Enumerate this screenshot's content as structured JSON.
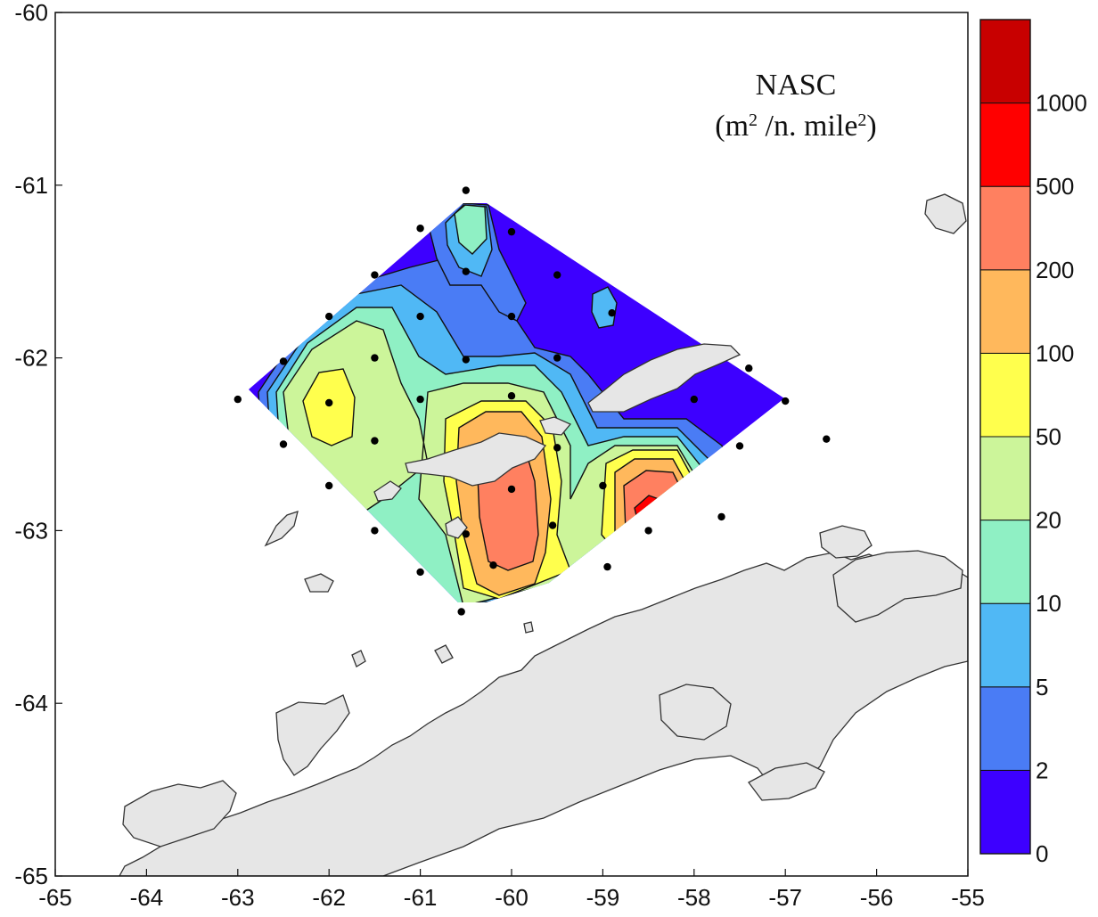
{
  "legend": {
    "title_line1": "NASC",
    "title_line2_prefix": "(m",
    "title_line2_sup1": "2",
    "title_line2_mid": " /n. mile",
    "title_line2_sup2": "2",
    "title_line2_suffix": ")"
  },
  "colorbar": {
    "levels": [
      {
        "label": "0",
        "color": "#3d00ff"
      },
      {
        "label": "2",
        "color": "#4a7cf5"
      },
      {
        "label": "5",
        "color": "#50b8f5"
      },
      {
        "label": "10",
        "color": "#8ff0c4"
      },
      {
        "label": "20",
        "color": "#ccf59a"
      },
      {
        "label": "50",
        "color": "#ffff4d"
      },
      {
        "label": "100",
        "color": "#ffb85c"
      },
      {
        "label": "200",
        "color": "#ff8060"
      },
      {
        "label": "500",
        "color": "#ff0000"
      },
      {
        "label": "1000",
        "color": "#c80000"
      }
    ]
  },
  "axes": {
    "x_ticks": [
      "-65",
      "-64",
      "-63",
      "-62",
      "-61",
      "-60",
      "-59",
      "-58",
      "-57",
      "-56",
      "-55"
    ],
    "y_ticks": [
      "-60",
      "-61",
      "-62",
      "-63",
      "-64",
      "-65"
    ],
    "xlim": [
      -65,
      -55
    ],
    "ylim": [
      -65,
      -60
    ]
  },
  "stations": [
    [
      -60.5,
      -61.03
    ],
    [
      -61.0,
      -61.25
    ],
    [
      -60.0,
      -61.27
    ],
    [
      -61.5,
      -61.52
    ],
    [
      -60.5,
      -61.5
    ],
    [
      -59.5,
      -61.52
    ],
    [
      -62.0,
      -61.76
    ],
    [
      -61.0,
      -61.76
    ],
    [
      -60.0,
      -61.76
    ],
    [
      -58.9,
      -61.74
    ],
    [
      -62.5,
      -62.02
    ],
    [
      -61.5,
      -62.0
    ],
    [
      -60.5,
      -62.01
    ],
    [
      -59.5,
      -62.0
    ],
    [
      -57.4,
      -62.06
    ],
    [
      -63.0,
      -62.24
    ],
    [
      -62.0,
      -62.26
    ],
    [
      -61.0,
      -62.24
    ],
    [
      -60.0,
      -62.22
    ],
    [
      -58.0,
      -62.24
    ],
    [
      -57.0,
      -62.25
    ],
    [
      -62.5,
      -62.5
    ],
    [
      -61.5,
      -62.48
    ],
    [
      -59.5,
      -62.52
    ],
    [
      -57.5,
      -62.51
    ],
    [
      -56.55,
      -62.47
    ],
    [
      -62.0,
      -62.74
    ],
    [
      -60.0,
      -62.76
    ],
    [
      -59.0,
      -62.74
    ],
    [
      -57.7,
      -62.92
    ],
    [
      -61.5,
      -63.0
    ],
    [
      -60.5,
      -63.02
    ],
    [
      -59.55,
      -62.97
    ],
    [
      -58.5,
      -63.0
    ],
    [
      -61.0,
      -63.24
    ],
    [
      -60.2,
      -63.2
    ],
    [
      -58.95,
      -63.21
    ],
    [
      -60.55,
      -63.47
    ]
  ]
}
